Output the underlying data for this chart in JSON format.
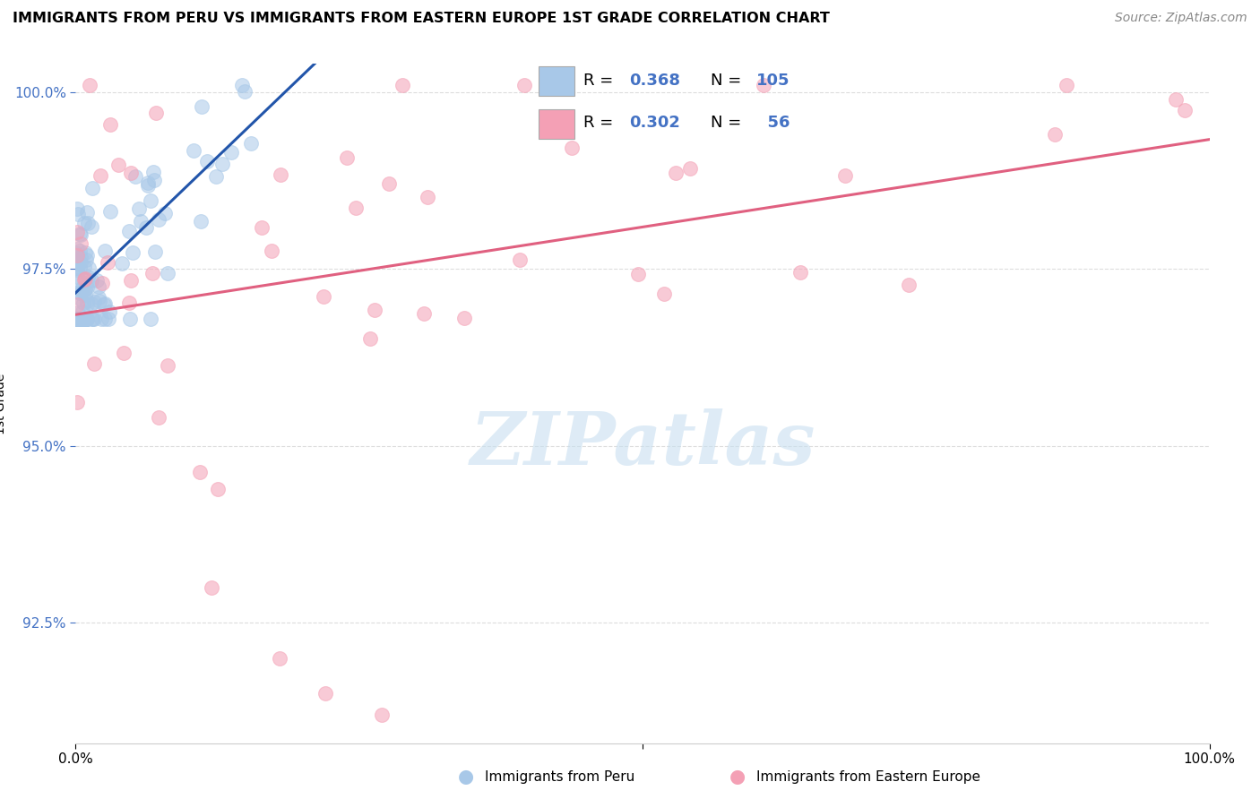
{
  "title": "IMMIGRANTS FROM PERU VS IMMIGRANTS FROM EASTERN EUROPE 1ST GRADE CORRELATION CHART",
  "source": "Source: ZipAtlas.com",
  "ylabel": "1st Grade",
  "R_blue": 0.368,
  "N_blue": 105,
  "R_pink": 0.302,
  "N_pink": 56,
  "blue_color": "#a8c8e8",
  "blue_line_color": "#2255aa",
  "pink_color": "#f4a0b5",
  "pink_line_color": "#e06080",
  "watermark_color": "#c8dff0",
  "background_color": "#ffffff",
  "grid_color": "#dddddd",
  "tick_color": "#4472c4",
  "legend_blue_label": "Immigrants from Peru",
  "legend_pink_label": "Immigrants from Eastern Europe",
  "xlim": [
    0.0,
    1.0
  ],
  "ylim": [
    0.908,
    1.004
  ],
  "yticks": [
    0.925,
    0.95,
    0.975,
    1.0
  ],
  "ytick_labels": [
    "92.5%",
    "95.0%",
    "97.5%",
    "100.0%"
  ]
}
